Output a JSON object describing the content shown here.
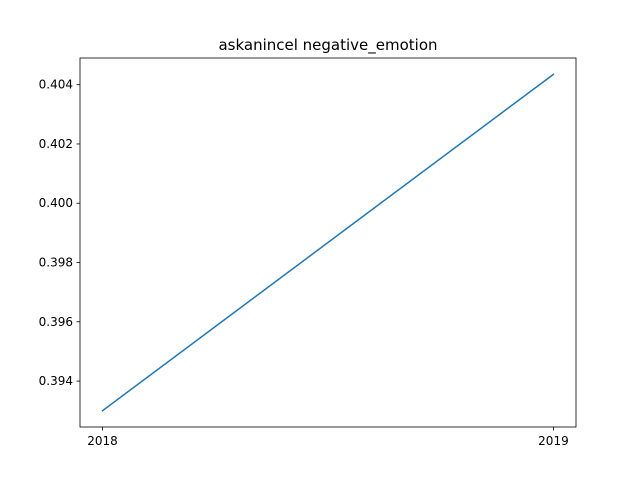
{
  "chart_data": {
    "type": "line",
    "title": "askanincel negative_emotion",
    "xlabel": "",
    "ylabel": "",
    "categories": [
      "2018",
      "2019"
    ],
    "x": [
      2018,
      2019
    ],
    "series": [
      {
        "name": "negative_emotion",
        "values": [
          0.393,
          0.40435
        ],
        "color": "#1f77b4"
      }
    ],
    "xlim": [
      2017.95,
      2019.05
    ],
    "ylim": [
      0.39245,
      0.4049
    ],
    "x_ticks": [
      {
        "value": 2018,
        "label": "2018"
      },
      {
        "value": 2019,
        "label": "2019"
      }
    ],
    "y_ticks": [
      {
        "value": 0.394,
        "label": "0.394"
      },
      {
        "value": 0.396,
        "label": "0.396"
      },
      {
        "value": 0.398,
        "label": "0.398"
      },
      {
        "value": 0.4,
        "label": "0.400"
      },
      {
        "value": 0.402,
        "label": "0.402"
      },
      {
        "value": 0.404,
        "label": "0.404"
      }
    ],
    "grid": false,
    "legend": "none"
  }
}
